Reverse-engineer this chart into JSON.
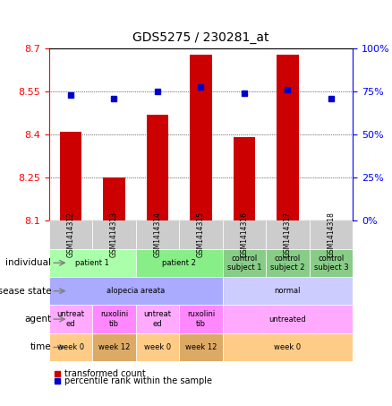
{
  "title": "GDS5275 / 230281_at",
  "samples": [
    "GSM1414312",
    "GSM1414313",
    "GSM1414314",
    "GSM1414315",
    "GSM1414316",
    "GSM1414317",
    "GSM1414318"
  ],
  "transformed_count": [
    8.41,
    8.25,
    8.47,
    8.68,
    8.39,
    8.68,
    8.1
  ],
  "percentile_rank": [
    73,
    71,
    75,
    78,
    74,
    76,
    71
  ],
  "y_min": 8.1,
  "y_max": 8.7,
  "y_ticks": [
    8.1,
    8.25,
    8.4,
    8.55,
    8.7
  ],
  "y2_ticks": [
    0,
    25,
    50,
    75,
    100
  ],
  "y2_tick_positions": [
    8.1,
    8.25,
    8.4,
    8.55,
    8.7
  ],
  "bar_color": "#cc0000",
  "dot_color": "#0000cc",
  "grid_color": "#000000",
  "annotation_rows": [
    {
      "label": "individual",
      "groups": [
        {
          "cols": [
            0,
            1
          ],
          "text": "patient 1",
          "color": "#aaffaa"
        },
        {
          "cols": [
            2,
            3
          ],
          "text": "patient 2",
          "color": "#88ee88"
        },
        {
          "cols": [
            4
          ],
          "text": "control\nsubject 1",
          "color": "#88cc88"
        },
        {
          "cols": [
            5
          ],
          "text": "control\nsubject 2",
          "color": "#88cc88"
        },
        {
          "cols": [
            6
          ],
          "text": "control\nsubject 3",
          "color": "#88cc88"
        }
      ]
    },
    {
      "label": "disease state",
      "groups": [
        {
          "cols": [
            0,
            1,
            2,
            3
          ],
          "text": "alopecia areata",
          "color": "#aaaaff"
        },
        {
          "cols": [
            4,
            5,
            6
          ],
          "text": "normal",
          "color": "#ccccff"
        }
      ]
    },
    {
      "label": "agent",
      "groups": [
        {
          "cols": [
            0
          ],
          "text": "untreat\ned",
          "color": "#ffaaff"
        },
        {
          "cols": [
            1
          ],
          "text": "ruxolini\ntib",
          "color": "#ff88ff"
        },
        {
          "cols": [
            2
          ],
          "text": "untreat\ned",
          "color": "#ffaaff"
        },
        {
          "cols": [
            3
          ],
          "text": "ruxolini\ntib",
          "color": "#ff88ff"
        },
        {
          "cols": [
            4,
            5,
            6
          ],
          "text": "untreated",
          "color": "#ffaaff"
        }
      ]
    },
    {
      "label": "time",
      "groups": [
        {
          "cols": [
            0
          ],
          "text": "week 0",
          "color": "#ffcc88"
        },
        {
          "cols": [
            1
          ],
          "text": "week 12",
          "color": "#ddaa66"
        },
        {
          "cols": [
            2
          ],
          "text": "week 0",
          "color": "#ffcc88"
        },
        {
          "cols": [
            3
          ],
          "text": "week 12",
          "color": "#ddaa66"
        },
        {
          "cols": [
            4,
            5,
            6
          ],
          "text": "week 0",
          "color": "#ffcc88"
        }
      ]
    }
  ]
}
